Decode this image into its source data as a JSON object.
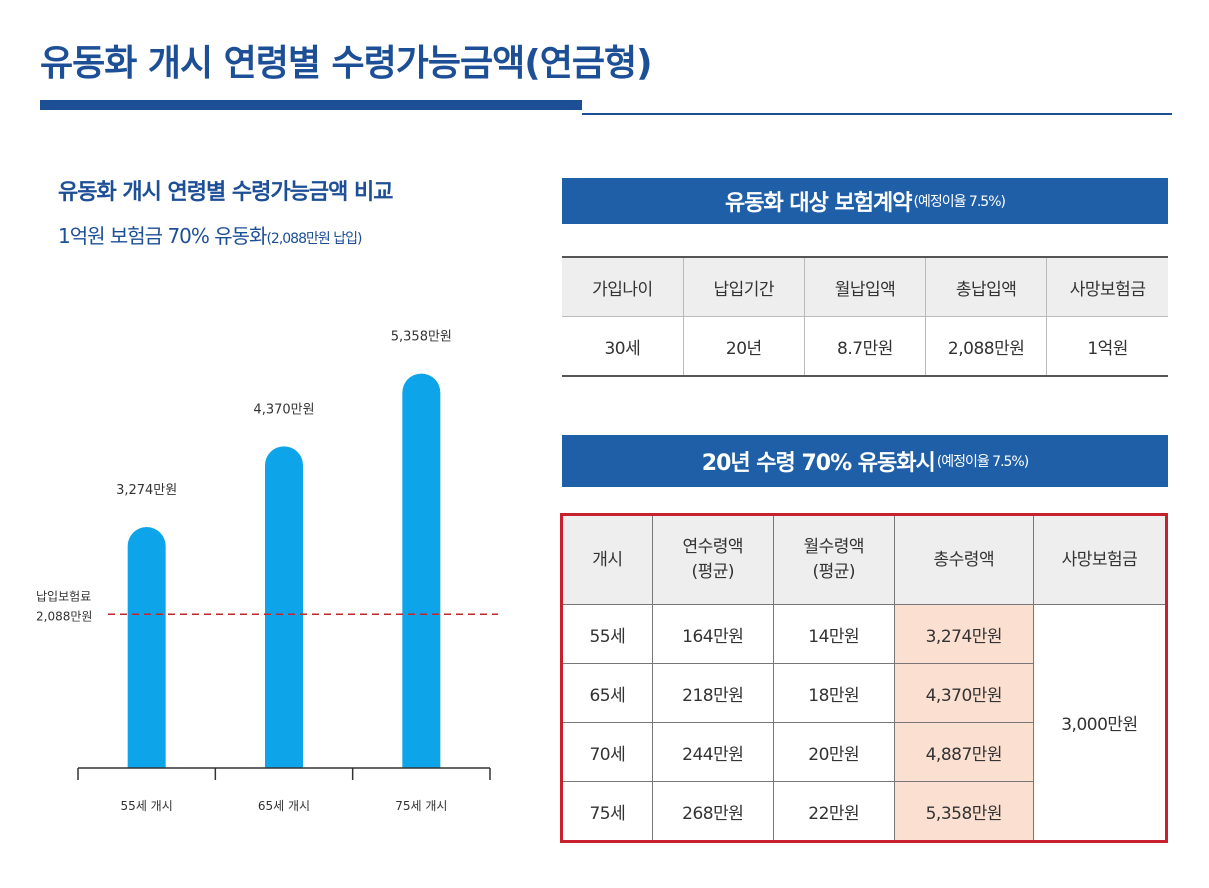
{
  "header": {
    "title": "유동화 개시 연령별 수령가능금액(연금형)"
  },
  "chart_data": {
    "type": "bar",
    "title": "유동화 개시 연령별 수령가능금액 비교",
    "subtitle_main": "1억원 보험금 70% 유동화",
    "subtitle_note": "(2,088만원 납입)",
    "categories": [
      "55세 개시",
      "65세 개시",
      "75세 개시"
    ],
    "values": [
      3274,
      4370,
      5358
    ],
    "value_labels": [
      "3,274만원",
      "4,370만원",
      "5,358만원"
    ],
    "unit": "만원",
    "ylim": [
      0,
      7200
    ],
    "reference_line": {
      "value": 2088,
      "label_line1": "납입보험료",
      "label_line2": "2,088만원"
    },
    "colors": {
      "bar": "#0ea4ea",
      "reference": "#c0272d",
      "axis": "#333333"
    }
  },
  "contract": {
    "title_main": "유동화 대상 보험계약",
    "title_note": "(예정이율 7.5%)",
    "headers": [
      "가입나이",
      "납입기간",
      "월납입액",
      "총납입액",
      "사망보험금"
    ],
    "row": [
      "30세",
      "20년",
      "8.7만원",
      "2,088만원",
      "1억원"
    ]
  },
  "payout": {
    "title_main": "20년 수령 70% 유동화시",
    "title_note": "(예정이율 7.5%)",
    "headers": [
      {
        "line1": "개시",
        "line2": ""
      },
      {
        "line1": "연수령액",
        "line2": "(평균)"
      },
      {
        "line1": "월수령액",
        "line2": "(평균)"
      },
      {
        "line1": "총수령액",
        "line2": ""
      },
      {
        "line1": "사망보험금",
        "line2": ""
      }
    ],
    "rows": [
      [
        "55세",
        "164만원",
        "14만원",
        "3,274만원"
      ],
      [
        "65세",
        "218만원",
        "18만원",
        "4,370만원"
      ],
      [
        "70세",
        "244만원",
        "20만원",
        "4,887만원"
      ],
      [
        "75세",
        "268만원",
        "22만원",
        "5,358만원"
      ]
    ],
    "death_benefit": "3,000만원"
  },
  "colors": {
    "brand_blue": "#1d4f96",
    "band_blue": "#1f5fa8",
    "highlight": "#fbe0d2",
    "frame_red": "#c8212e"
  }
}
